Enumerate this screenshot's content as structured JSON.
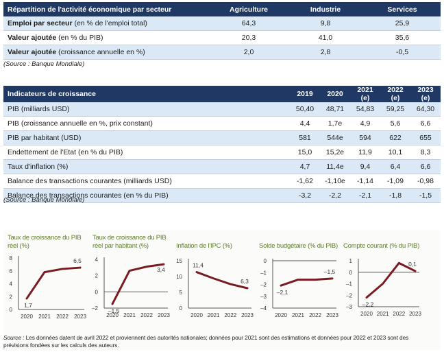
{
  "table1": {
    "headers": [
      "Répartition de l'activité économique par secteur",
      "Agriculture",
      "Industrie",
      "Services"
    ],
    "rows": [
      {
        "bold": "Emploi par secteur",
        "rest": " (en % de l'emploi total)",
        "values": [
          "64,3",
          "9,8",
          "25,9"
        ]
      },
      {
        "bold": "Valeur ajoutée",
        "rest": " (en % du PIB)",
        "values": [
          "20,3",
          "41,0",
          "35,6"
        ]
      },
      {
        "bold": "Valeur ajoutée",
        "rest": " (croissance annuelle en %)",
        "values": [
          "2,0",
          "2,8",
          "-0,5"
        ]
      }
    ],
    "source": "(Source : Banque Mondiale)"
  },
  "table2": {
    "headers": [
      "Indicateurs de croissance",
      "2019",
      "2020",
      "2021 (e)",
      "2022 (e)",
      "2023 (e)"
    ],
    "rows": [
      {
        "label": "PIB (milliards USD)",
        "values": [
          "50,40",
          "48,71",
          "54,83",
          "59,25",
          "64,30"
        ]
      },
      {
        "label": "PIB (croissance annuelle en %, prix constant)",
        "values": [
          "4,4",
          "1,7e",
          "4,9",
          "5,6",
          "6,6"
        ]
      },
      {
        "label": "PIB par habitant (USD)",
        "values": [
          "581",
          "544e",
          "594",
          "622",
          "655"
        ]
      },
      {
        "label": "Endettement de l'Etat (en % du PIB)",
        "values": [
          "15,0",
          "15,2e",
          "11,9",
          "10,1",
          "8,3"
        ]
      },
      {
        "label": "Taux d'inflation (%)",
        "values": [
          "4,7",
          "11,4e",
          "9,4",
          "6,4",
          "6,6"
        ]
      },
      {
        "label": "Balance des transactions courantes (milliards USD)",
        "values": [
          "-1,62",
          "-1,10e",
          "-1,14",
          "-1,09",
          "-0,98"
        ]
      },
      {
        "label": "Balance des transactions courantes (en % du PIB)",
        "values": [
          "-3,2",
          "-2,2",
          "-2,1",
          "-1,8",
          "-1,5"
        ]
      }
    ],
    "source": "(Source : Banque Mondiale)"
  },
  "chart_data": [
    {
      "type": "line",
      "title": "Taux de croissance du PIB réel (%)",
      "x": [
        "2020",
        "2021",
        "2022",
        "2023"
      ],
      "values": [
        1.7,
        5.8,
        6.3,
        6.5
      ],
      "ylim": [
        0,
        8
      ],
      "yticks": [
        0,
        2,
        4,
        6,
        8
      ],
      "data_labels": {
        "0": "1,7",
        "3": "6,5"
      },
      "zero_line": false,
      "color": "#7a1a22"
    },
    {
      "type": "line",
      "title": "Taux de croissance du PIB réel par habitant (%)",
      "x": [
        "2020",
        "2021",
        "2022",
        "2023"
      ],
      "values": [
        -1.5,
        2.6,
        3.1,
        3.4
      ],
      "ylim": [
        -2,
        4
      ],
      "yticks": [
        -2,
        0,
        2,
        4
      ],
      "data_labels": {
        "0": "–1,5",
        "3": "3,4"
      },
      "zero_line": true,
      "color": "#7a1a22"
    },
    {
      "type": "line",
      "title": "Inflation de l'IPC (%)",
      "x": [
        "2020",
        "2021",
        "2022",
        "2023"
      ],
      "values": [
        11.4,
        9.4,
        7.6,
        6.3
      ],
      "ylim": [
        0,
        15
      ],
      "yticks": [
        0,
        5,
        10,
        15
      ],
      "data_labels": {
        "0": "11,4",
        "3": "6,3"
      },
      "zero_line": false,
      "color": "#7a1a22"
    },
    {
      "type": "line",
      "title": "Solde budgétaire (% du PIB)",
      "x": [
        "2020",
        "2021",
        "2022",
        "2023"
      ],
      "values": [
        -2.1,
        -1.6,
        -1.6,
        -1.5
      ],
      "ylim": [
        -4,
        0
      ],
      "yticks": [
        -4,
        -3,
        -2,
        -1,
        0
      ],
      "data_labels": {
        "0": "–2,1",
        "3": "–1,5"
      },
      "zero_line": true,
      "color": "#7a1a22"
    },
    {
      "type": "line",
      "title": "Compte courant (% du PIB)",
      "x": [
        "2020",
        "2021",
        "2022",
        "2023"
      ],
      "values": [
        -2.2,
        -1.0,
        0.8,
        0.1
      ],
      "ylim": [
        -3,
        1
      ],
      "yticks": [
        -3,
        -2,
        -1,
        0,
        1
      ],
      "data_labels": {
        "0": "–2,2",
        "3": "0,1"
      },
      "zero_line": true,
      "color": "#7a1a22"
    }
  ],
  "charts": {
    "titles": [
      [
        "Taux de croissance du PIB",
        "réel (%)"
      ],
      [
        "Taux de croissance du PIB",
        "réel par habitant (%)"
      ],
      [
        "Inflation de l'IPC (%)"
      ],
      [
        "Solde budgétaire (% du PIB)"
      ],
      [
        "Compte courant (% du PIB)"
      ]
    ],
    "footnote_label": "Source :",
    "footnote_text": " Les données datent de avril 2022 et proviennent des autorités nationales; données pour 2021 sont des estimations et données pour 2022 et 2023 sont des prévisions fondées sur les calculs des auteurs."
  }
}
